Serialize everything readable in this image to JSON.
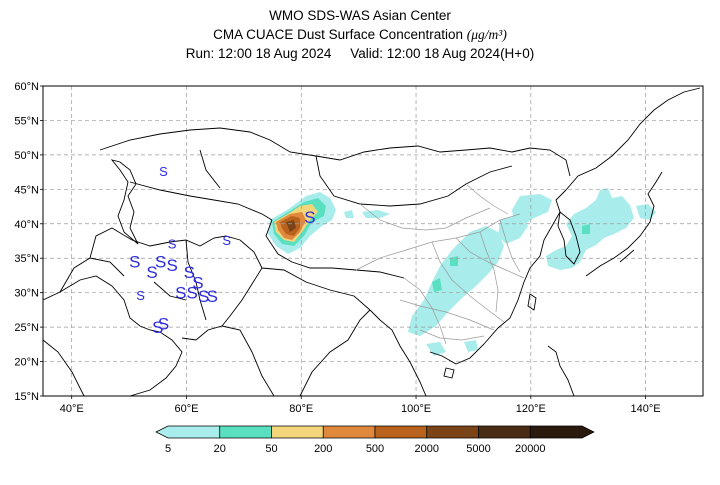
{
  "title": {
    "line1": "WMO SDS-WAS Asian Center",
    "line2_text": "CMA CUACE Dust Surface Concentration",
    "line2_unit": "(μg/m³)",
    "run_label": "Run: 12:00 18 Aug 2024",
    "valid_label": "Valid: 12:00 18 Aug 2024(H+0)"
  },
  "map": {
    "lon_range": [
      35,
      150
    ],
    "lat_range": [
      15,
      60
    ],
    "lat_ticks": [
      "15°N",
      "20°N",
      "25°N",
      "30°N",
      "35°N",
      "40°N",
      "45°N",
      "50°N",
      "55°N",
      "60°N"
    ],
    "lon_ticks": [
      "40°E",
      "60°E",
      "80°E",
      "100°E",
      "120°E",
      "140°E"
    ],
    "grid": true,
    "sandstorm_symbol": "S",
    "sandstorm_marker_color": "#2a2ae0",
    "sandstorm_markers": [
      {
        "lon": 51,
        "lat": 34.5,
        "size": "large"
      },
      {
        "lon": 54,
        "lat": 33,
        "size": "large"
      },
      {
        "lon": 55.5,
        "lat": 34.5,
        "size": "large"
      },
      {
        "lon": 57.5,
        "lat": 34,
        "size": "large"
      },
      {
        "lon": 59,
        "lat": 30,
        "size": "large"
      },
      {
        "lon": 60.5,
        "lat": 33,
        "size": "large"
      },
      {
        "lon": 61,
        "lat": 30,
        "size": "large"
      },
      {
        "lon": 62,
        "lat": 31.5,
        "size": "large"
      },
      {
        "lon": 63,
        "lat": 29.5,
        "size": "large"
      },
      {
        "lon": 64.5,
        "lat": 29.5,
        "size": "large"
      },
      {
        "lon": 55,
        "lat": 25,
        "size": "large"
      },
      {
        "lon": 56,
        "lat": 25.5,
        "size": "large"
      },
      {
        "lon": 52,
        "lat": 29.5,
        "size": "small"
      },
      {
        "lon": 57.5,
        "lat": 37,
        "size": "small"
      },
      {
        "lon": 67,
        "lat": 37.5,
        "size": "small"
      },
      {
        "lon": 56,
        "lat": 47.5,
        "size": "small"
      },
      {
        "lon": 81.5,
        "lat": 41,
        "size": "large"
      }
    ]
  },
  "colorbar": {
    "levels": [
      "5",
      "20",
      "50",
      "200",
      "500",
      "2000",
      "5000",
      "20000"
    ],
    "colors": [
      "#a8ecec",
      "#5ae0c0",
      "#f4d67a",
      "#e0883c",
      "#b8621e",
      "#7a4418",
      "#4a2c14",
      "#2a1a0e"
    ]
  }
}
